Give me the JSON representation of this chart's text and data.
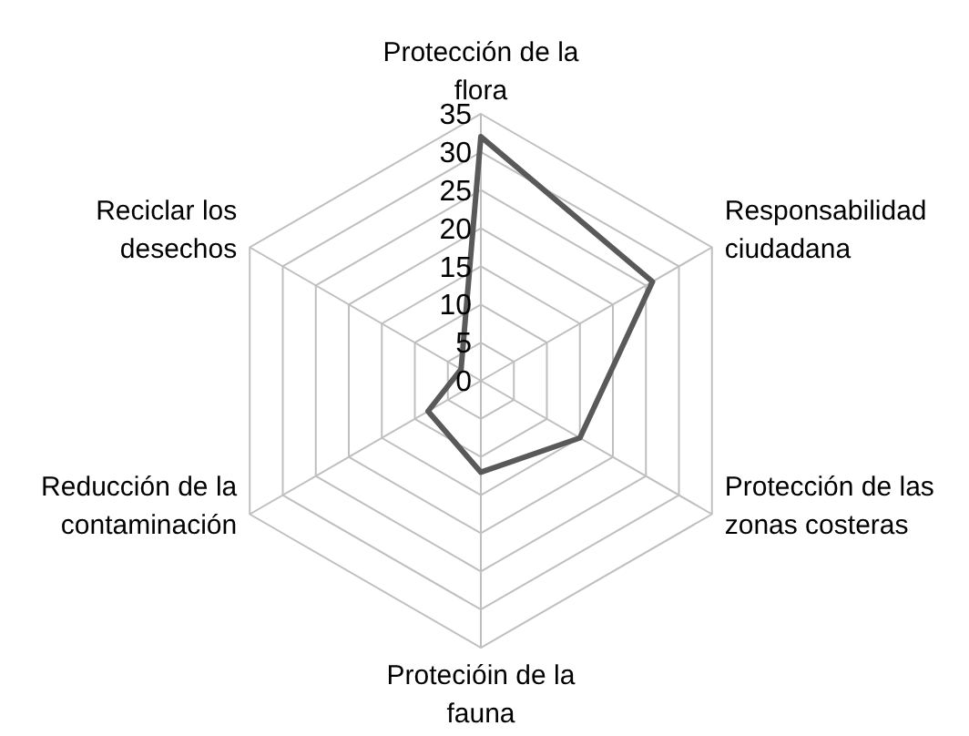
{
  "chart_data": {
    "type": "radar",
    "categories": [
      "Protección de la flora",
      "Responsabilidad ciudadana",
      "Protección de las zonas costeras",
      "Protecióin de la fauna",
      "Reducción de la contaminación",
      "Reciclar los desechos"
    ],
    "series": [
      {
        "color": "#595959",
        "values": [
          32,
          26,
          15,
          12,
          8,
          3
        ]
      }
    ],
    "ylim": [
      0,
      35
    ],
    "yticks": [
      0,
      5,
      10,
      15,
      20,
      25,
      30,
      35
    ],
    "grid": true,
    "marker": "none",
    "line_style": "solid"
  }
}
